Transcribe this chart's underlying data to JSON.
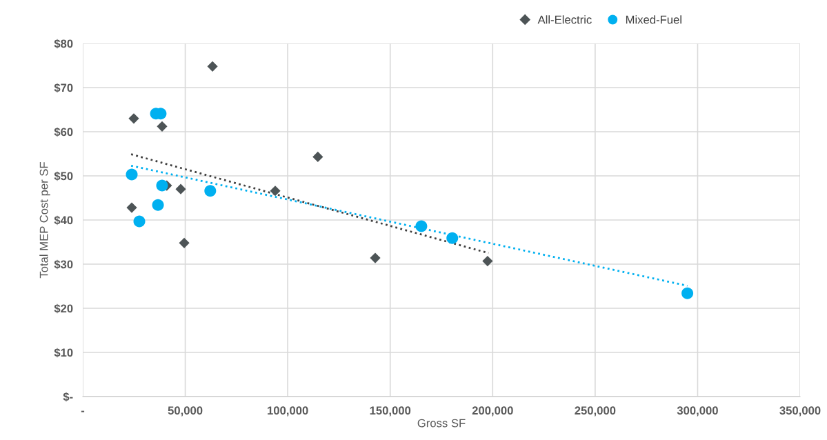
{
  "chart_data": {
    "type": "scatter",
    "xlabel": "Gross SF",
    "ylabel": "Total MEP Cost per SF",
    "xlim": [
      0,
      350000
    ],
    "ylim": [
      0,
      80
    ],
    "xticks": [
      {
        "value": 0,
        "label": "-"
      },
      {
        "value": 50000,
        "label": "50,000"
      },
      {
        "value": 100000,
        "label": "100,000"
      },
      {
        "value": 150000,
        "label": "150,000"
      },
      {
        "value": 200000,
        "label": "200,000"
      },
      {
        "value": 250000,
        "label": "250,000"
      },
      {
        "value": 300000,
        "label": "300,000"
      },
      {
        "value": 350000,
        "label": "350,000"
      }
    ],
    "yticks": [
      {
        "value": 0,
        "label": "$-"
      },
      {
        "value": 10,
        "label": "$10"
      },
      {
        "value": 20,
        "label": "$20"
      },
      {
        "value": 30,
        "label": "$30"
      },
      {
        "value": 40,
        "label": "$40"
      },
      {
        "value": 50,
        "label": "$50"
      },
      {
        "value": 60,
        "label": "$60"
      },
      {
        "value": 70,
        "label": "$70"
      },
      {
        "value": 80,
        "label": "$80"
      }
    ],
    "grid": true,
    "legend": "top right",
    "series": [
      {
        "name": "All-Electric",
        "color": "#4d5456",
        "marker": "diamond",
        "x": [
          63300,
          24900,
          38700,
          41000,
          47800,
          23900,
          49500,
          93900,
          114700,
          142700,
          197500
        ],
        "values": [
          74.8,
          63.0,
          61.2,
          47.8,
          47.0,
          42.8,
          34.8,
          46.6,
          54.3,
          31.4,
          30.7
        ]
      },
      {
        "name": "Mixed-Fuel",
        "color": "#00b0f0",
        "marker": "circle",
        "x": [
          35700,
          38000,
          23900,
          38700,
          36700,
          27600,
          62200,
          165200,
          180300,
          295000
        ],
        "values": [
          64.1,
          64.1,
          50.3,
          47.8,
          43.4,
          39.7,
          46.6,
          38.6,
          35.9,
          23.4
        ]
      },
      {
        "type": "line",
        "color": "#404040",
        "line_style": "dotted",
        "x": [
          23600,
          198000
        ],
        "values": [
          54.9,
          32.5
        ]
      },
      {
        "type": "line",
        "color": "#00b0f0",
        "line_style": "dotted",
        "x": [
          23600,
          295000
        ],
        "values": [
          52.3,
          25.1
        ]
      }
    ]
  }
}
